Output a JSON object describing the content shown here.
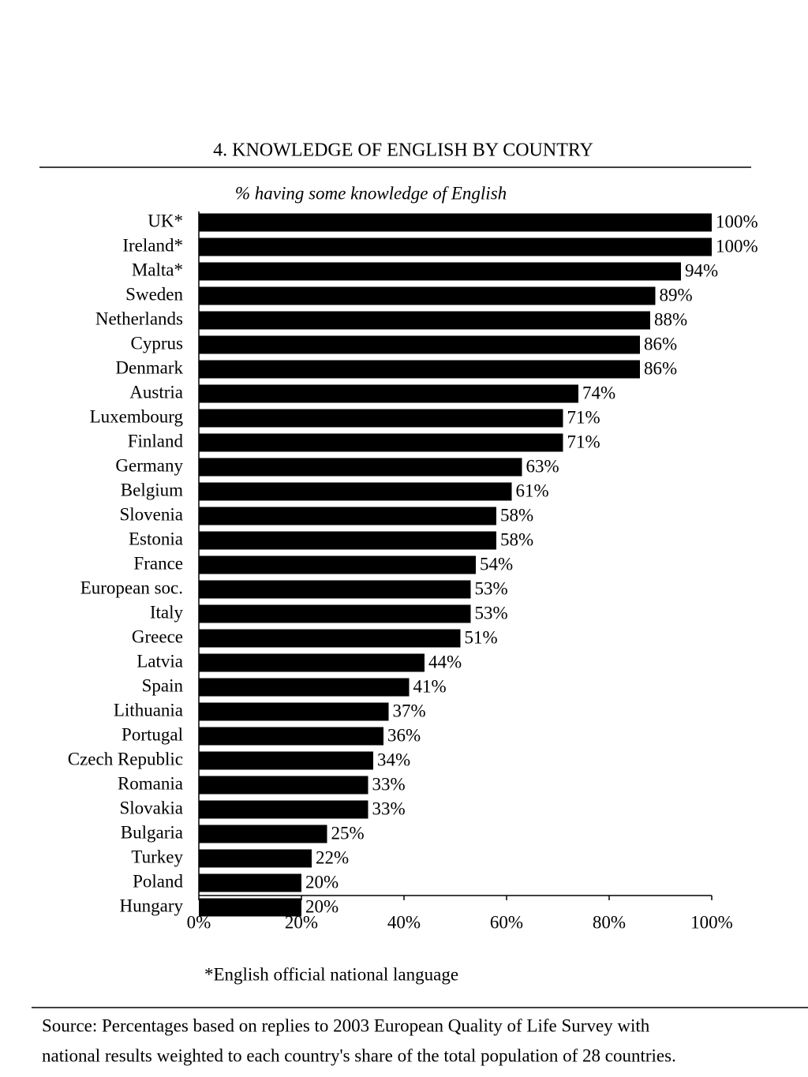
{
  "chart_data": {
    "type": "barh",
    "title": "4. KNOWLEDGE OF ENGLISH BY COUNTRY",
    "subtitle": "%  having some knowledge of English",
    "categories": [
      "UK*",
      "Ireland*",
      "Malta*",
      "Sweden",
      "Netherlands",
      "Cyprus",
      "Denmark",
      "Austria",
      "Luxembourg",
      "Finland",
      "Germany",
      "Belgium",
      "Slovenia",
      "Estonia",
      "France",
      "European soc.",
      "Italy",
      "Greece",
      "Latvia",
      "Spain",
      "Lithuania",
      "Portugal",
      "Czech Republic",
      "Romania",
      "Slovakia",
      "Bulgaria",
      "Turkey",
      "Poland",
      "Hungary"
    ],
    "values": [
      100,
      100,
      94,
      89,
      88,
      86,
      86,
      74,
      71,
      71,
      63,
      61,
      58,
      58,
      54,
      53,
      53,
      51,
      44,
      41,
      37,
      36,
      34,
      33,
      33,
      25,
      22,
      20,
      20
    ],
    "value_labels": [
      "100%",
      "100%",
      "94%",
      "89%",
      "88%",
      "86%",
      "86%",
      "74%",
      "71%",
      "71%",
      "63%",
      "61%",
      "58%",
      "58%",
      "54%",
      "53%",
      "53%",
      "51%",
      "44%",
      "41%",
      "37%",
      "36%",
      "34%",
      "33%",
      "33%",
      "25%",
      "22%",
      "20%",
      "20%"
    ],
    "color": "#000000",
    "xlim": [
      0,
      100
    ],
    "xticks": [
      {
        "value": 0,
        "label": "0%"
      },
      {
        "value": 20,
        "label": "20%"
      },
      {
        "value": 40,
        "label": "40%"
      },
      {
        "value": 60,
        "label": "60%"
      },
      {
        "value": 80,
        "label": "80%"
      },
      {
        "value": 100,
        "label": "100%"
      }
    ],
    "footnote": "*English official national language",
    "source": [
      "Source: Percentages based on replies to 2003 European Quality of Life Survey  with",
      "national results weighted to each country's share of the total population of 28 countries."
    ]
  }
}
